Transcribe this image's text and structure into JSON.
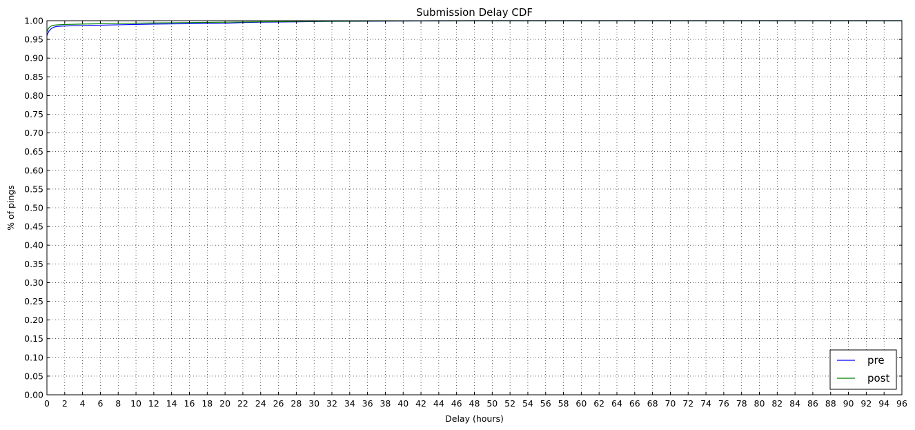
{
  "chart_data": {
    "type": "line",
    "title": "Submission Delay CDF",
    "xlabel": "Delay (hours)",
    "ylabel": "% of pings",
    "xlim": [
      0,
      96
    ],
    "ylim": [
      0,
      1.0
    ],
    "x_ticks": [
      0,
      2,
      4,
      6,
      8,
      10,
      12,
      14,
      16,
      18,
      20,
      22,
      24,
      26,
      28,
      30,
      32,
      34,
      36,
      38,
      40,
      42,
      44,
      46,
      48,
      50,
      52,
      54,
      56,
      58,
      60,
      62,
      64,
      66,
      68,
      70,
      72,
      74,
      76,
      78,
      80,
      82,
      84,
      86,
      88,
      90,
      92,
      94,
      96
    ],
    "y_ticks": [
      "0.00",
      "0.05",
      "0.10",
      "0.15",
      "0.20",
      "0.25",
      "0.30",
      "0.35",
      "0.40",
      "0.45",
      "0.50",
      "0.55",
      "0.60",
      "0.65",
      "0.70",
      "0.75",
      "0.80",
      "0.85",
      "0.90",
      "0.95",
      "1.00"
    ],
    "grid": true,
    "legend_position": "bottom-right",
    "series": [
      {
        "name": "pre",
        "color": "#0000ff",
        "points": [
          [
            0,
            0.96
          ],
          [
            0.1,
            0.966
          ],
          [
            0.25,
            0.973
          ],
          [
            0.5,
            0.979
          ],
          [
            0.8,
            0.983
          ],
          [
            1.2,
            0.985
          ],
          [
            2,
            0.986
          ],
          [
            4,
            0.987
          ],
          [
            8,
            0.989
          ],
          [
            12,
            0.991
          ],
          [
            16,
            0.992
          ],
          [
            20,
            0.993
          ],
          [
            22,
            0.995
          ],
          [
            24,
            0.996
          ],
          [
            28,
            0.997
          ],
          [
            32,
            0.998
          ],
          [
            40,
            0.999
          ],
          [
            48,
            1.0
          ],
          [
            96,
            1.0
          ]
        ]
      },
      {
        "name": "post",
        "color": "#008000",
        "points": [
          [
            0,
            0.97
          ],
          [
            0.1,
            0.976
          ],
          [
            0.25,
            0.982
          ],
          [
            0.5,
            0.986
          ],
          [
            0.8,
            0.988
          ],
          [
            1.2,
            0.989
          ],
          [
            2,
            0.99
          ],
          [
            4,
            0.991
          ],
          [
            8,
            0.993
          ],
          [
            12,
            0.994
          ],
          [
            16,
            0.995
          ],
          [
            20,
            0.996
          ],
          [
            24,
            0.997
          ],
          [
            28,
            0.998
          ],
          [
            36,
            0.999
          ],
          [
            44,
            1.0
          ],
          [
            96,
            1.0
          ]
        ]
      }
    ]
  }
}
